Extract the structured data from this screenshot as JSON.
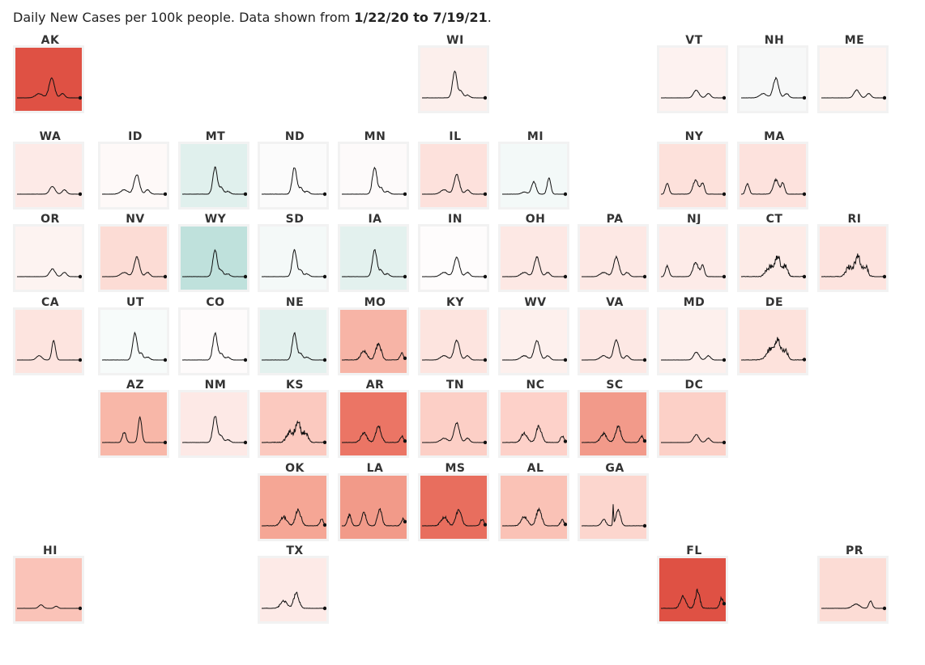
{
  "header": {
    "prefix": "Daily New Cases per 100k people. Data shown from ",
    "start": "1/22/20",
    "mid": " to ",
    "end": "7/19/21",
    "suffix": "."
  },
  "chart_data": {
    "type": "line",
    "layout": "tile-grid small multiples",
    "x_range": [
      "1/22/20",
      "7/19/21"
    ],
    "background_encoding": "fill color per state (red = higher, teal = lower)",
    "tiles": [
      {
        "abbr": "AK",
        "col": 0,
        "row": 0,
        "bg": "#df5144",
        "pattern": "winter"
      },
      {
        "abbr": "WI",
        "col": 5,
        "row": 0,
        "bg": "#fcefec",
        "pattern": "fallpeak"
      },
      {
        "abbr": "VT",
        "col": 8,
        "row": 0,
        "bg": "#fdf2f0",
        "pattern": "flatwinter"
      },
      {
        "abbr": "NH",
        "col": 9,
        "row": 0,
        "bg": "#f7f8f8",
        "pattern": "winter"
      },
      {
        "abbr": "ME",
        "col": 10,
        "row": 0,
        "bg": "#fdf3f0",
        "pattern": "flatwinter"
      },
      {
        "abbr": "WA",
        "col": 0,
        "row": 1,
        "bg": "#fdeae7",
        "pattern": "flatwinter"
      },
      {
        "abbr": "ID",
        "col": 1,
        "row": 1,
        "bg": "#fef9f8",
        "pattern": "winter"
      },
      {
        "abbr": "MT",
        "col": 2,
        "row": 1,
        "bg": "#e0f0ed",
        "pattern": "fallpeak"
      },
      {
        "abbr": "ND",
        "col": 3,
        "row": 1,
        "bg": "#fbfbfb",
        "pattern": "fallpeak"
      },
      {
        "abbr": "MN",
        "col": 4,
        "row": 1,
        "bg": "#fdfafa",
        "pattern": "fallpeak"
      },
      {
        "abbr": "IL",
        "col": 5,
        "row": 1,
        "bg": "#fde1dc",
        "pattern": "winter"
      },
      {
        "abbr": "MI",
        "col": 6,
        "row": 1,
        "bg": "#f3f9f8",
        "pattern": "spring"
      },
      {
        "abbr": "NY",
        "col": 8,
        "row": 1,
        "bg": "#fde1db",
        "pattern": "northeast"
      },
      {
        "abbr": "MA",
        "col": 9,
        "row": 1,
        "bg": "#fde2dd",
        "pattern": "northeast"
      },
      {
        "abbr": "OR",
        "col": 0,
        "row": 2,
        "bg": "#fdf3f1",
        "pattern": "flatwinter"
      },
      {
        "abbr": "NV",
        "col": 1,
        "row": 2,
        "bg": "#fcdcd5",
        "pattern": "winter"
      },
      {
        "abbr": "WY",
        "col": 2,
        "row": 2,
        "bg": "#bfe1dc",
        "pattern": "fallpeak"
      },
      {
        "abbr": "SD",
        "col": 3,
        "row": 2,
        "bg": "#f4f9f8",
        "pattern": "fallpeak"
      },
      {
        "abbr": "IA",
        "col": 4,
        "row": 2,
        "bg": "#e3f1ee",
        "pattern": "fallpeak"
      },
      {
        "abbr": "IN",
        "col": 5,
        "row": 2,
        "bg": "#fefcfc",
        "pattern": "winter"
      },
      {
        "abbr": "OH",
        "col": 6,
        "row": 2,
        "bg": "#fde8e4",
        "pattern": "winter"
      },
      {
        "abbr": "PA",
        "col": 7,
        "row": 2,
        "bg": "#fde8e4",
        "pattern": "winter"
      },
      {
        "abbr": "NJ",
        "col": 8,
        "row": 2,
        "bg": "#fdebe8",
        "pattern": "northeast"
      },
      {
        "abbr": "CT",
        "col": 9,
        "row": 2,
        "bg": "#fdebe7",
        "pattern": "noisy"
      },
      {
        "abbr": "RI",
        "col": 10,
        "row": 2,
        "bg": "#fde3de",
        "pattern": "noisy"
      },
      {
        "abbr": "CA",
        "col": 0,
        "row": 3,
        "bg": "#fde4df",
        "pattern": "cawinter"
      },
      {
        "abbr": "UT",
        "col": 1,
        "row": 3,
        "bg": "#f7fbfa",
        "pattern": "fallpeak"
      },
      {
        "abbr": "CO",
        "col": 2,
        "row": 3,
        "bg": "#fefbfb",
        "pattern": "fallpeak"
      },
      {
        "abbr": "NE",
        "col": 3,
        "row": 3,
        "bg": "#e3f1ee",
        "pattern": "fallpeak"
      },
      {
        "abbr": "MO",
        "col": 4,
        "row": 3,
        "bg": "#f7b4a6",
        "pattern": "southern"
      },
      {
        "abbr": "KY",
        "col": 5,
        "row": 3,
        "bg": "#fde4df",
        "pattern": "winter"
      },
      {
        "abbr": "WV",
        "col": 6,
        "row": 3,
        "bg": "#fdf0ed",
        "pattern": "winter"
      },
      {
        "abbr": "VA",
        "col": 7,
        "row": 3,
        "bg": "#fde8e4",
        "pattern": "winter"
      },
      {
        "abbr": "MD",
        "col": 8,
        "row": 3,
        "bg": "#fdf0ed",
        "pattern": "flatwinter"
      },
      {
        "abbr": "DE",
        "col": 9,
        "row": 3,
        "bg": "#fde2dc",
        "pattern": "noisy"
      },
      {
        "abbr": "AZ",
        "col": 1,
        "row": 4,
        "bg": "#f8b7a8",
        "pattern": "azwinter"
      },
      {
        "abbr": "NM",
        "col": 2,
        "row": 4,
        "bg": "#fde9e6",
        "pattern": "fallpeak"
      },
      {
        "abbr": "KS",
        "col": 3,
        "row": 4,
        "bg": "#fbc9bf",
        "pattern": "noisy"
      },
      {
        "abbr": "AR",
        "col": 4,
        "row": 4,
        "bg": "#eb7565",
        "pattern": "southern"
      },
      {
        "abbr": "TN",
        "col": 5,
        "row": 4,
        "bg": "#fccfc6",
        "pattern": "winter"
      },
      {
        "abbr": "NC",
        "col": 6,
        "row": 4,
        "bg": "#fdd1c9",
        "pattern": "southern"
      },
      {
        "abbr": "SC",
        "col": 7,
        "row": 4,
        "bg": "#f29a8a",
        "pattern": "southern"
      },
      {
        "abbr": "DC",
        "col": 8,
        "row": 4,
        "bg": "#fcd0c7",
        "pattern": "flatwinter"
      },
      {
        "abbr": "OK",
        "col": 3,
        "row": 5,
        "bg": "#f5a695",
        "pattern": "southern"
      },
      {
        "abbr": "LA",
        "col": 4,
        "row": 5,
        "bg": "#f29a89",
        "pattern": "la"
      },
      {
        "abbr": "MS",
        "col": 5,
        "row": 5,
        "bg": "#e86e5e",
        "pattern": "southern"
      },
      {
        "abbr": "AL",
        "col": 6,
        "row": 5,
        "bg": "#fac2b6",
        "pattern": "southern"
      },
      {
        "abbr": "GA",
        "col": 7,
        "row": 5,
        "bg": "#fcd6ce",
        "pattern": "ga"
      },
      {
        "abbr": "HI",
        "col": 0,
        "row": 6,
        "bg": "#fac3b8",
        "pattern": "hi"
      },
      {
        "abbr": "TX",
        "col": 3,
        "row": 6,
        "bg": "#fdeae7",
        "pattern": "tx"
      },
      {
        "abbr": "FL",
        "col": 8,
        "row": 6,
        "bg": "#df5144",
        "pattern": "fl"
      },
      {
        "abbr": "PR",
        "col": 10,
        "row": 6,
        "bg": "#fcdcd5",
        "pattern": "pr"
      }
    ]
  }
}
